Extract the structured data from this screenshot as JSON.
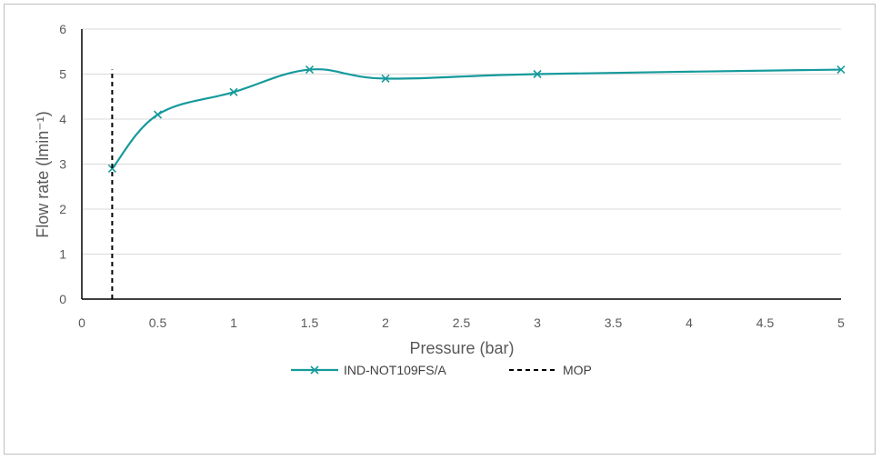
{
  "chart_data": {
    "type": "line",
    "title": "",
    "xlabel": "Pressure (bar)",
    "ylabel": "Flow rate (lmin⁻¹)",
    "xlim": [
      0,
      5
    ],
    "ylim": [
      0,
      6
    ],
    "x_ticks": [
      "0",
      "0.5",
      "1",
      "1.5",
      "2",
      "2.5",
      "3",
      "3.5",
      "4",
      "4.5",
      "5"
    ],
    "y_ticks": [
      "0",
      "1",
      "2",
      "3",
      "4",
      "5",
      "6"
    ],
    "grid": "horizontal",
    "legend_position": "bottom",
    "series": [
      {
        "name": "IND-NOT109FS/A",
        "color": "#159a9c",
        "marker": "x",
        "smooth": true,
        "x": [
          0.2,
          0.5,
          1,
          1.5,
          2,
          3,
          5
        ],
        "y": [
          2.9,
          4.1,
          4.6,
          5.1,
          4.9,
          5.0,
          5.1
        ]
      },
      {
        "name": "MOP",
        "color": "#000000",
        "style": "dashed",
        "x": [
          0.2,
          0.2
        ],
        "y": [
          0,
          5.1
        ]
      }
    ]
  }
}
